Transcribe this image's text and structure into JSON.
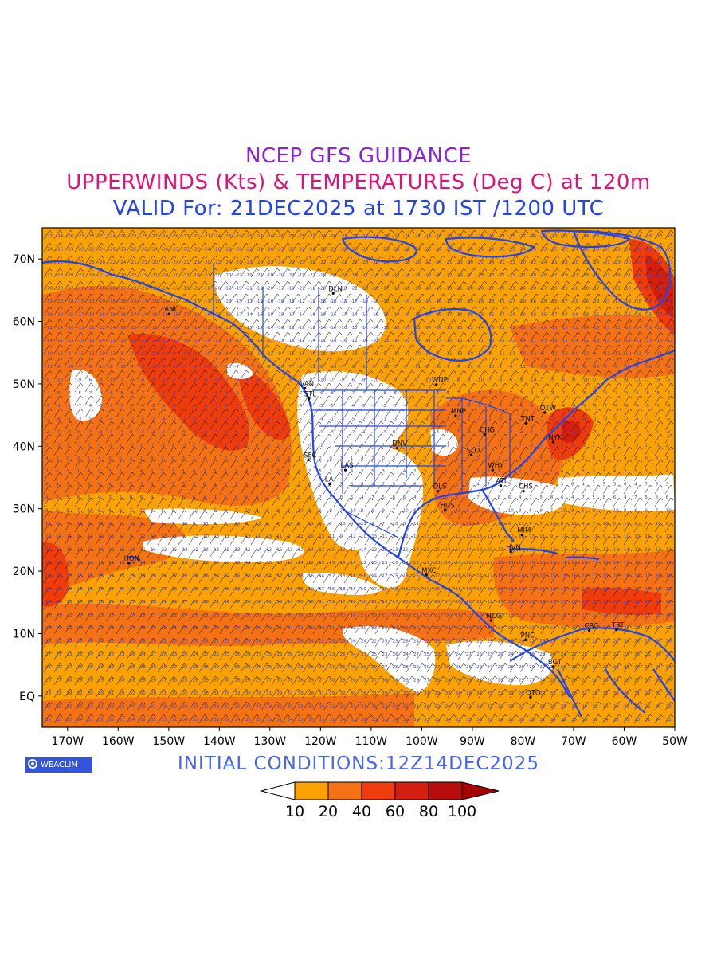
{
  "header": {
    "line1": "NCEP GFS GUIDANCE",
    "line2": "UPPERWINDS (Kts) & TEMPERATURES (Deg C) at 120m",
    "line3": "VALID For: 21DEC2025 at 1730 IST /1200 UTC",
    "colors": {
      "line1": "#8822dd",
      "line2": "#e0127a",
      "line3": "#2244ee"
    }
  },
  "map": {
    "lon_range": [
      -175,
      -50
    ],
    "lat_range": [
      -5,
      75
    ],
    "lat_ticks": [
      "EQ",
      "10N",
      "20N",
      "30N",
      "40N",
      "50N",
      "60N",
      "70N"
    ],
    "lat_tick_values": [
      0,
      10,
      20,
      30,
      40,
      50,
      60,
      70
    ],
    "lon_ticks": [
      "170W",
      "160W",
      "150W",
      "140W",
      "130W",
      "120W",
      "110W",
      "100W",
      "90W",
      "80W",
      "70W",
      "60W",
      "50W"
    ],
    "lon_tick_values": [
      -170,
      -160,
      -150,
      -140,
      -130,
      -120,
      -110,
      -100,
      -90,
      -80,
      -70,
      -60,
      -50
    ],
    "stations": [
      {
        "label": "ANC",
        "lon": -149.9,
        "lat": 61.2
      },
      {
        "label": "DLN",
        "lon": -117.5,
        "lat": 64.5
      },
      {
        "label": "VAN",
        "lon": -123.1,
        "lat": 49.3
      },
      {
        "label": "STL",
        "lon": -122.3,
        "lat": 47.6
      },
      {
        "label": "WNP",
        "lon": -97.1,
        "lat": 49.9
      },
      {
        "label": "MNP",
        "lon": -93.3,
        "lat": 44.9
      },
      {
        "label": "TNT",
        "lon": -79.4,
        "lat": 43.7
      },
      {
        "label": "OTW",
        "lon": -75.7,
        "lat": 45.4
      },
      {
        "label": "CHG",
        "lon": -87.6,
        "lat": 41.9
      },
      {
        "label": "NYK",
        "lon": -74.0,
        "lat": 40.7
      },
      {
        "label": "SFC",
        "lon": -122.4,
        "lat": 37.8
      },
      {
        "label": "LAS",
        "lon": -115.1,
        "lat": 36.2
      },
      {
        "label": "DNV",
        "lon": -104.9,
        "lat": 39.7
      },
      {
        "label": "SLO",
        "lon": -90.2,
        "lat": 38.6
      },
      {
        "label": "WHY",
        "lon": -86.0,
        "lat": 36.2
      },
      {
        "label": "LA",
        "lon": -118.2,
        "lat": 34.0
      },
      {
        "label": "ATL",
        "lon": -84.4,
        "lat": 33.7
      },
      {
        "label": "DLS",
        "lon": -96.8,
        "lat": 32.8
      },
      {
        "label": "CHS",
        "lon": -79.9,
        "lat": 32.8
      },
      {
        "label": "HUS",
        "lon": -95.4,
        "lat": 29.8
      },
      {
        "label": "MIM",
        "lon": -80.2,
        "lat": 25.8
      },
      {
        "label": "HVN",
        "lon": -82.4,
        "lat": 23.1
      },
      {
        "label": "HON",
        "lon": -157.9,
        "lat": 21.3
      },
      {
        "label": "MXC",
        "lon": -99.1,
        "lat": 19.4
      },
      {
        "label": "NCG",
        "lon": -86.3,
        "lat": 12.1
      },
      {
        "label": "CRC",
        "lon": -66.9,
        "lat": 10.5
      },
      {
        "label": "PNC",
        "lon": -79.5,
        "lat": 8.98
      },
      {
        "label": "BGT",
        "lon": -74.1,
        "lat": 4.7
      },
      {
        "label": "TRT",
        "lon": -61.5,
        "lat": 10.6
      },
      {
        "label": "QTO",
        "lon": -78.5,
        "lat": -0.2
      }
    ],
    "shade_colors": {
      "lt10": "#ffffff",
      "10-20": "#fba100",
      "20-40": "#f57214",
      "40-60": "#ee3c0b",
      "60-80": "#d41f0f",
      "80-100": "#b90c0c",
      "gt100": "#a60000"
    },
    "line_color": "#2244ee"
  },
  "logo": {
    "text": "WEACLIM"
  },
  "footer": {
    "initial_conditions": "INITIAL  CONDITIONS:12Z14DEC2025"
  },
  "colorbar": {
    "labels": [
      "10",
      "20",
      "40",
      "60",
      "80",
      "100"
    ],
    "colors": [
      "#ffffff",
      "#fba100",
      "#f57214",
      "#ee3c0b",
      "#d41f0f",
      "#b90c0c",
      "#a60000"
    ]
  }
}
